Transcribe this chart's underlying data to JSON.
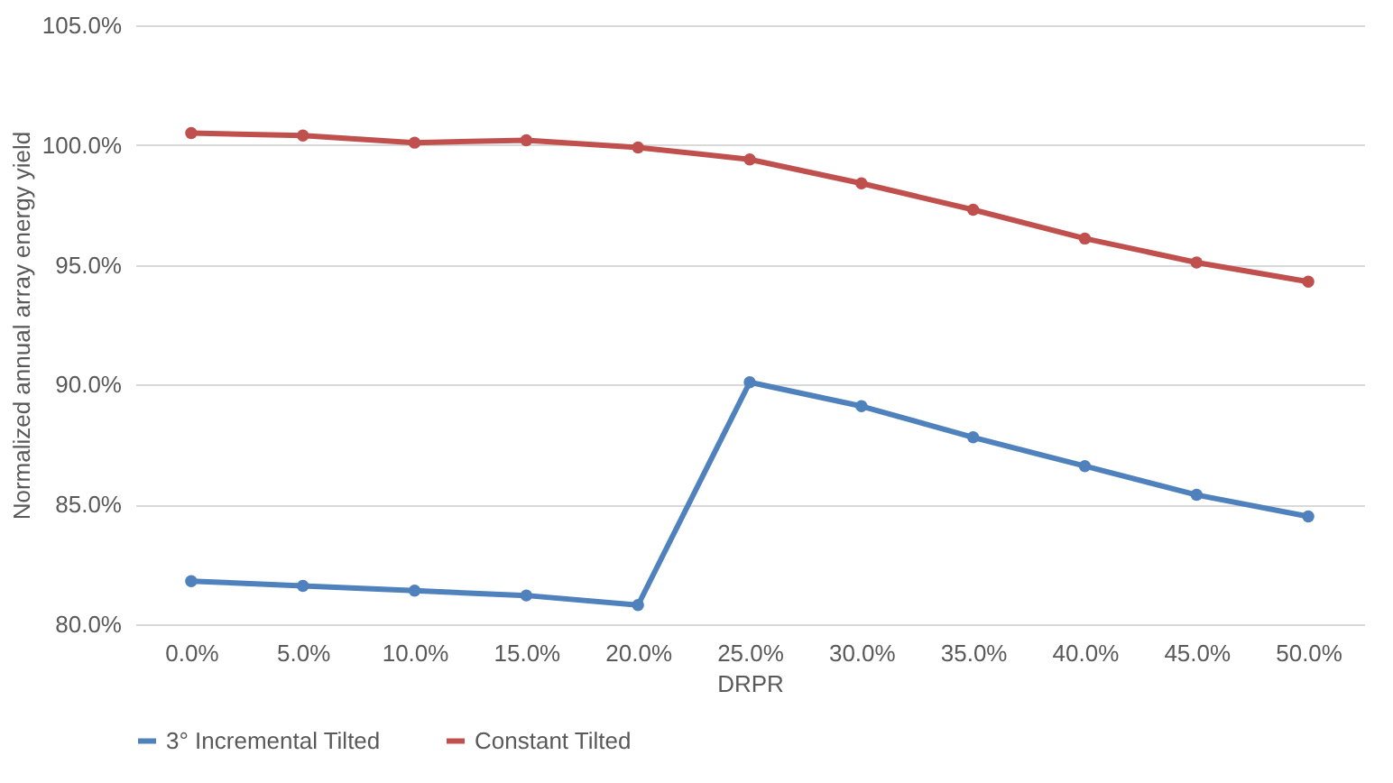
{
  "chart_data": {
    "type": "line",
    "xlabel": "DRPR",
    "ylabel": "Normalized annual array energy yield",
    "categories": [
      "0.0%",
      "5.0%",
      "10.0%",
      "15.0%",
      "20.0%",
      "25.0%",
      "30.0%",
      "35.0%",
      "40.0%",
      "45.0%",
      "50.0%"
    ],
    "series": [
      {
        "name": "3° Incremental Tilted",
        "color": "#4f81bd",
        "values": [
          81.8,
          81.6,
          81.4,
          81.2,
          80.8,
          90.1,
          89.1,
          87.8,
          86.6,
          85.4,
          84.5
        ]
      },
      {
        "name": "Constant Tilted",
        "color": "#c0504d",
        "values": [
          100.5,
          100.4,
          100.1,
          100.2,
          99.9,
          99.4,
          98.4,
          97.3,
          96.1,
          95.1,
          94.3
        ]
      }
    ],
    "ylim": [
      80,
      105
    ],
    "yticks": [
      {
        "value": 80,
        "label": "80.0%"
      },
      {
        "value": 85,
        "label": "85.0%"
      },
      {
        "value": 90,
        "label": "90.0%"
      },
      {
        "value": 95,
        "label": "95.0%"
      },
      {
        "value": 100,
        "label": "100.0%"
      },
      {
        "value": 105,
        "label": "105.0%"
      }
    ],
    "grid": "y",
    "legend": "bottom",
    "marker": "circle",
    "line_style": "solid"
  }
}
